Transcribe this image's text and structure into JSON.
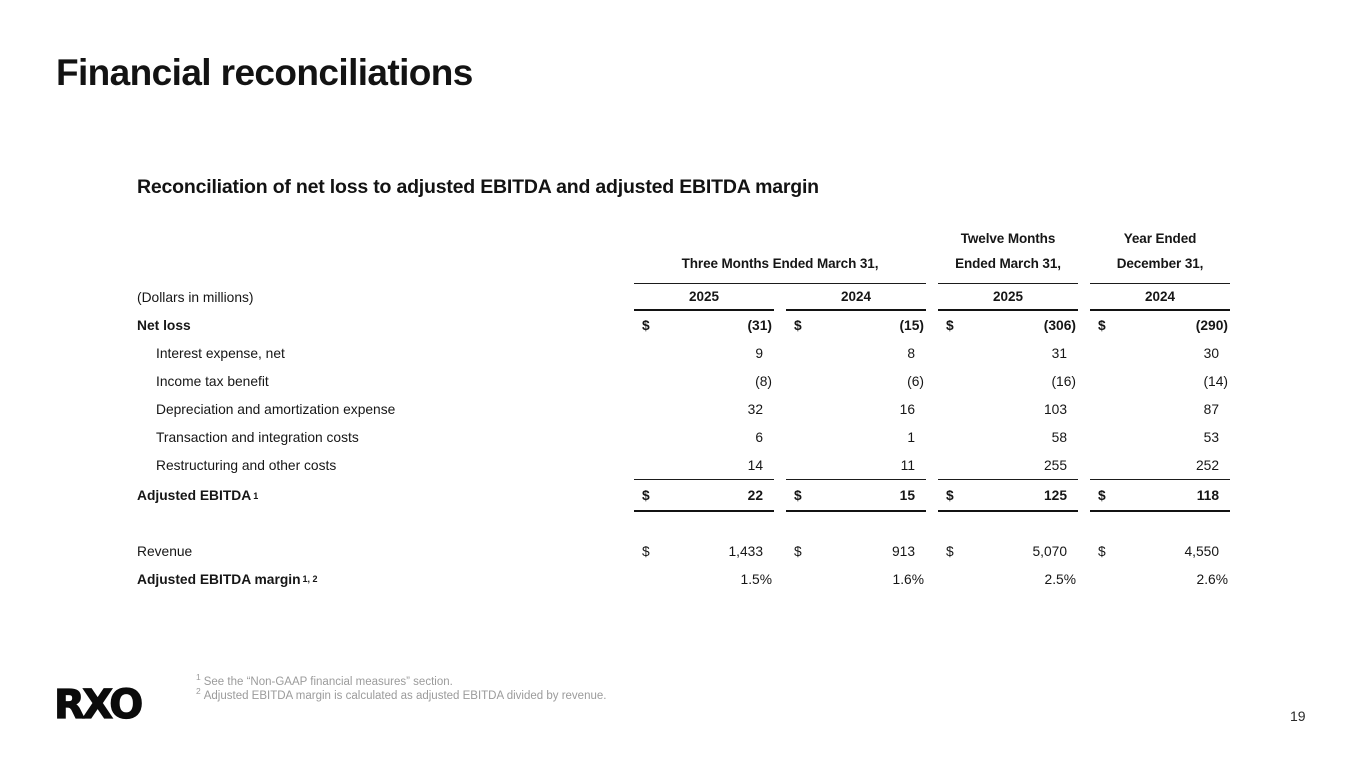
{
  "slide": {
    "title": "Financial reconciliations",
    "subtitle": "Reconciliation of net loss to adjusted EBITDA and adjusted EBITDA margin",
    "logo": "RXO",
    "page_number": "19"
  },
  "table": {
    "units_label": "(Dollars in millions)",
    "currency_symbol": "$",
    "column_groups": [
      {
        "line1": "",
        "line2": "Three Months Ended March 31,",
        "span": 2
      },
      {
        "line1": "Twelve Months",
        "line2": "Ended March 31,",
        "span": 1
      },
      {
        "line1": "Year Ended",
        "line2": "December 31,",
        "span": 1
      }
    ],
    "year_headers": [
      "2025",
      "2024",
      "2025",
      "2024"
    ],
    "rows": [
      {
        "label": "Net loss",
        "sup": "",
        "style": "bold",
        "indent": false,
        "dollar": true,
        "values": [
          "(31)",
          "(15)",
          "(306)",
          "(290)"
        ]
      },
      {
        "label": "Interest expense, net",
        "sup": "",
        "style": "regular",
        "indent": true,
        "dollar": false,
        "values": [
          "9",
          "8",
          "31",
          "30"
        ]
      },
      {
        "label": "Income tax benefit",
        "sup": "",
        "style": "regular",
        "indent": true,
        "dollar": false,
        "values": [
          "(8)",
          "(6)",
          "(16)",
          "(14)"
        ]
      },
      {
        "label": "Depreciation and amortization expense",
        "sup": "",
        "style": "regular",
        "indent": true,
        "dollar": false,
        "values": [
          "32",
          "16",
          "103",
          "87"
        ]
      },
      {
        "label": "Transaction and integration costs",
        "sup": "",
        "style": "regular",
        "indent": true,
        "dollar": false,
        "values": [
          "6",
          "1",
          "58",
          "53"
        ]
      },
      {
        "label": "Restructuring and other costs",
        "sup": "",
        "style": "regular",
        "indent": true,
        "dollar": false,
        "values": [
          "14",
          "11",
          "255",
          "252"
        ]
      },
      {
        "label": "Adjusted EBITDA",
        "sup": "1",
        "style": "total",
        "indent": false,
        "dollar": true,
        "values": [
          "22",
          "15",
          "125",
          "118"
        ]
      }
    ],
    "summary_rows": [
      {
        "label": "Revenue",
        "sup": "",
        "style": "regular",
        "indent": false,
        "dollar": true,
        "values": [
          "1,433",
          "913",
          "5,070",
          "4,550"
        ]
      },
      {
        "label": "Adjusted EBITDA margin",
        "sup": "1, 2",
        "style": "bold-label",
        "indent": false,
        "dollar": false,
        "values": [
          "1.5%",
          "1.6%",
          "2.5%",
          "2.6%"
        ]
      }
    ]
  },
  "footnotes": [
    {
      "sup": "1",
      "text": "See the “Non-GAAP financial measures” section."
    },
    {
      "sup": "2",
      "text": "Adjusted EBITDA margin is calculated as adjusted EBITDA divided by revenue."
    }
  ]
}
